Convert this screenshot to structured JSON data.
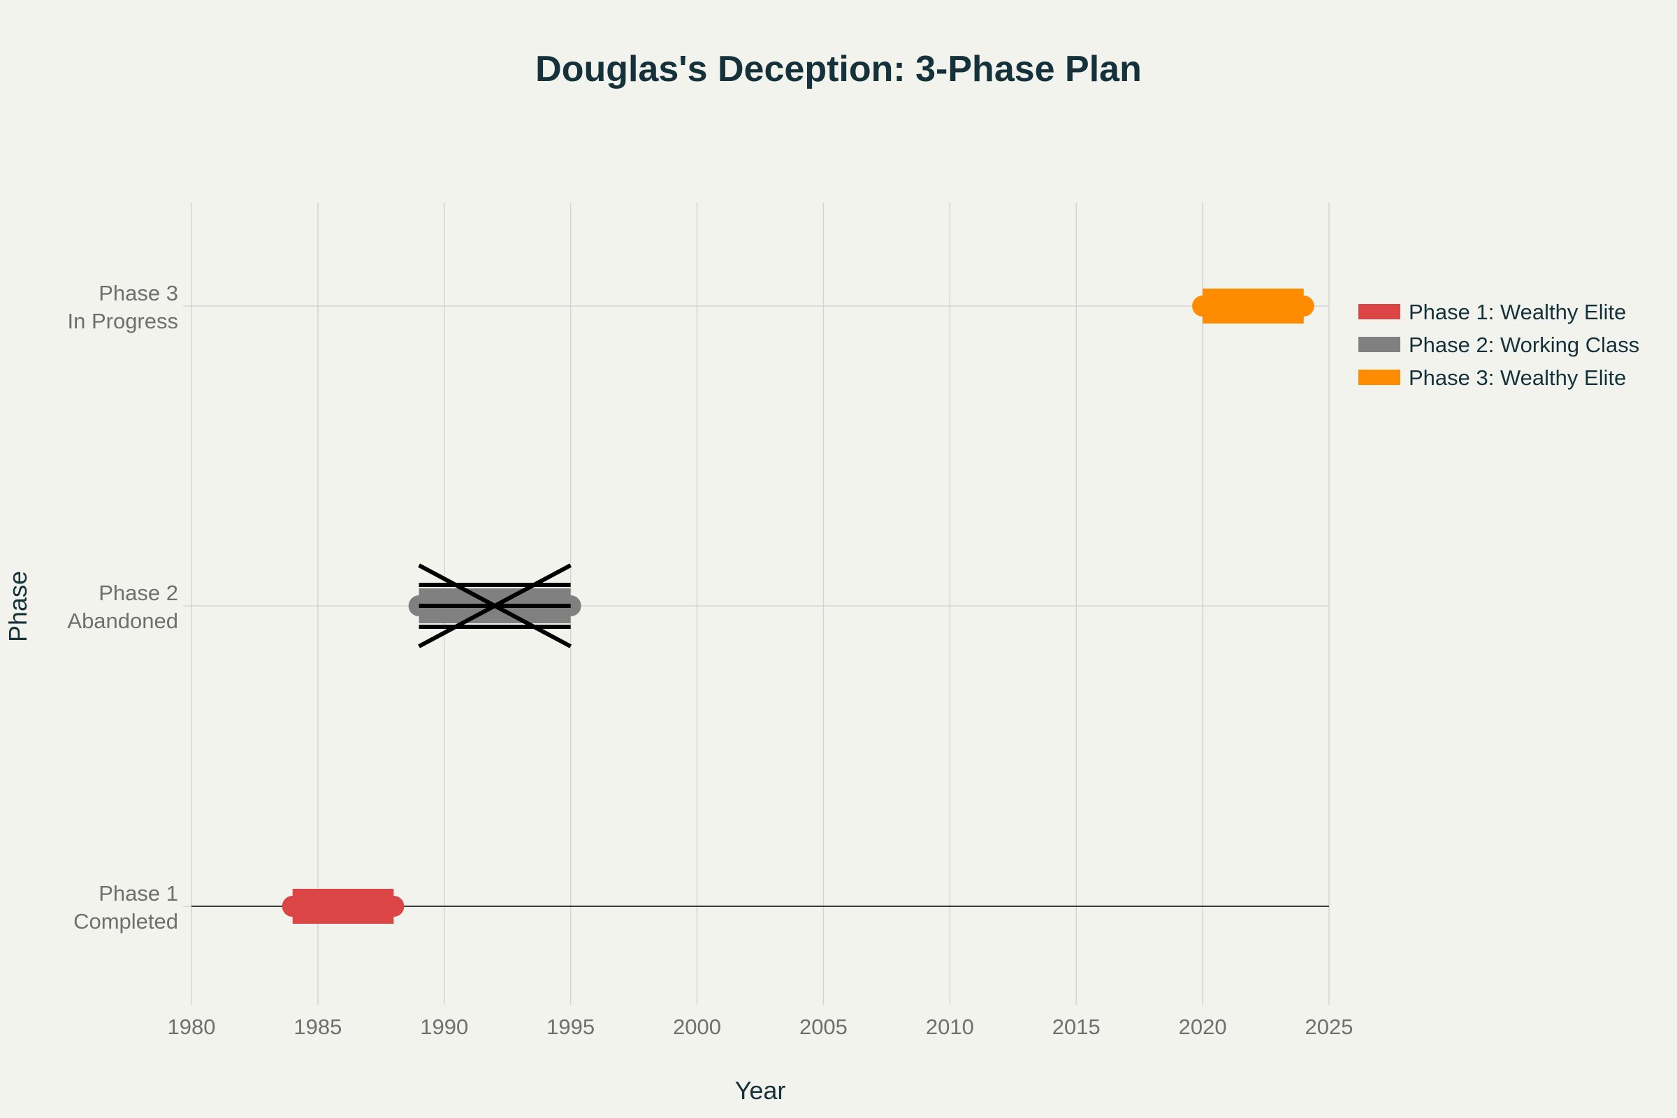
{
  "chart_data": {
    "type": "timeline",
    "title": "Douglas's Deception: 3-Phase Plan",
    "xlabel": "Year",
    "ylabel": "Phase",
    "xlim": [
      1980,
      2025
    ],
    "xticks": [
      "1980",
      "1985",
      "1990",
      "1995",
      "2000",
      "2005",
      "2010",
      "2015",
      "2020",
      "2025"
    ],
    "grid": true,
    "legend_position": "right",
    "phases": [
      {
        "label_line1": "Phase 1",
        "label_line2": "Completed",
        "name": "Phase 1: Wealthy Elite",
        "start": 1984,
        "end": 1988,
        "color": "#dc4545",
        "crossed_out": false
      },
      {
        "label_line1": "Phase 2",
        "label_line2": "Abandoned",
        "name": "Phase 2: Working Class",
        "start": 1989,
        "end": 1995,
        "color": "#808080",
        "crossed_out": true
      },
      {
        "label_line1": "Phase 3",
        "label_line2": "In Progress",
        "name": "Phase 3: Wealthy Elite",
        "start": 2020,
        "end": 2024,
        "color": "#ff8c00",
        "crossed_out": false
      }
    ]
  }
}
